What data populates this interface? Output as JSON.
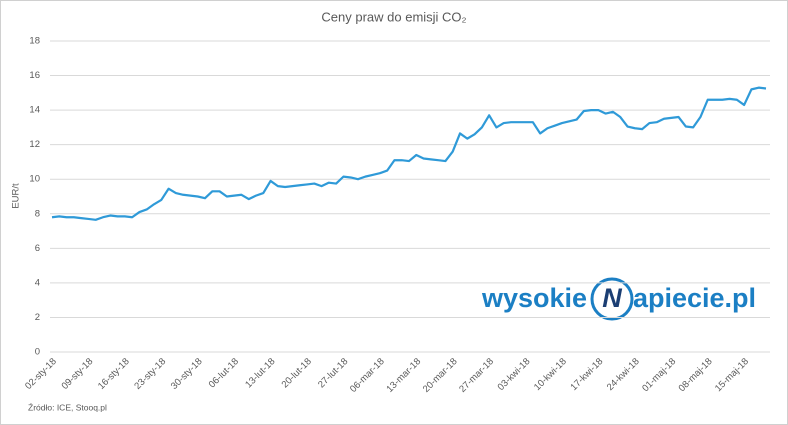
{
  "chart_data": {
    "type": "line",
    "title": "Ceny praw do emisji CO₂",
    "y_label": "EUR/t",
    "source": "Źródło: ICE, Stooq.pl",
    "logo": {
      "left": "wysokie",
      "mark": "N",
      "right": "apiecie.pl"
    },
    "color": "#2f9ad8",
    "grid": true,
    "ylim": [
      0,
      18
    ],
    "yticks": [
      0,
      2,
      4,
      6,
      8,
      10,
      12,
      14,
      16,
      18
    ],
    "categories": [
      "02-sty-18",
      null,
      null,
      null,
      null,
      "09-sty-18",
      null,
      null,
      null,
      null,
      "16-sty-18",
      null,
      null,
      null,
      null,
      "23-sty-18",
      null,
      null,
      null,
      null,
      "30-sty-18",
      null,
      null,
      null,
      null,
      "06-lut-18",
      null,
      null,
      null,
      null,
      "13-lut-18",
      null,
      null,
      null,
      null,
      "20-lut-18",
      null,
      null,
      null,
      null,
      "27-lut-18",
      null,
      null,
      null,
      null,
      "06-mar-18",
      null,
      null,
      null,
      null,
      "13-mar-18",
      null,
      null,
      null,
      null,
      "20-mar-18",
      null,
      null,
      null,
      null,
      "27-mar-18",
      null,
      null,
      null,
      null,
      "03-kwi-18",
      null,
      null,
      null,
      null,
      "10-kwi-18",
      null,
      null,
      null,
      null,
      "17-kwi-18",
      null,
      null,
      null,
      null,
      "24-kwi-18",
      null,
      null,
      null,
      null,
      "01-maj-18",
      null,
      null,
      null,
      null,
      "08-maj-18",
      null,
      null,
      null,
      null,
      "15-maj-18",
      null,
      null,
      null
    ],
    "values": [
      7.8,
      7.85,
      7.8,
      7.8,
      7.75,
      7.7,
      7.65,
      7.8,
      7.9,
      7.85,
      7.85,
      7.8,
      8.1,
      8.25,
      8.55,
      8.8,
      9.45,
      9.2,
      9.1,
      9.05,
      9.0,
      8.9,
      9.3,
      9.3,
      9.0,
      9.05,
      9.1,
      8.85,
      9.05,
      9.2,
      9.9,
      9.6,
      9.55,
      9.6,
      9.65,
      9.7,
      9.75,
      9.6,
      9.8,
      9.75,
      10.15,
      10.1,
      10.0,
      10.15,
      10.25,
      10.35,
      10.5,
      11.1,
      11.1,
      11.05,
      11.4,
      11.2,
      11.15,
      11.1,
      11.05,
      11.6,
      12.65,
      12.35,
      12.6,
      13.0,
      13.7,
      13.0,
      13.25,
      13.3,
      13.3,
      13.3,
      13.3,
      12.65,
      12.95,
      13.1,
      13.25,
      13.35,
      13.45,
      13.95,
      14.0,
      14.0,
      13.8,
      13.9,
      13.6,
      13.05,
      12.95,
      12.9,
      13.25,
      13.3,
      13.5,
      13.55,
      13.6,
      13.05,
      13.0,
      13.6,
      14.6,
      14.6,
      14.6,
      14.65,
      14.6,
      14.3,
      15.2,
      15.3,
      15.25
    ]
  }
}
